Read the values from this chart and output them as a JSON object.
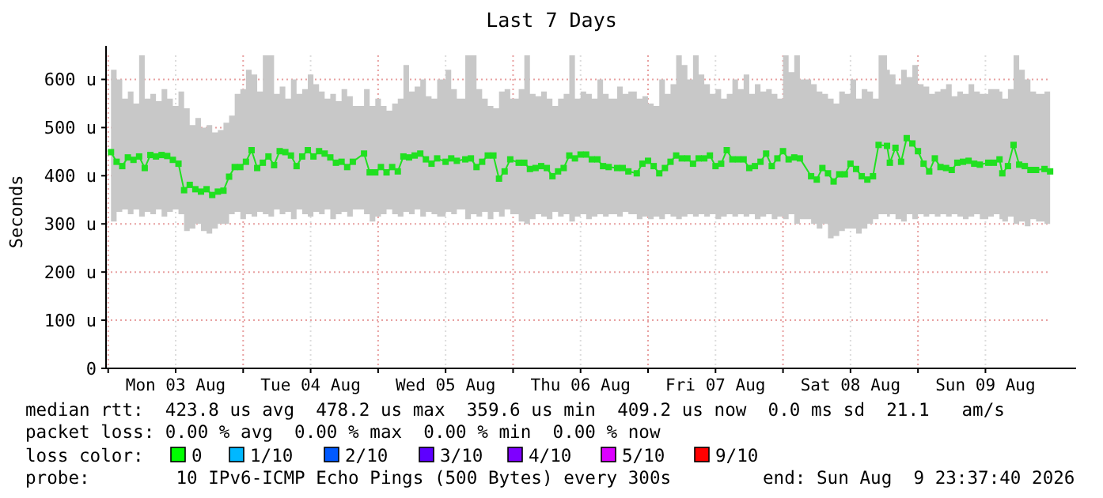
{
  "chart_data": {
    "type": "line",
    "title": "Last 7 Days",
    "ylabel": "Seconds",
    "xlim": [
      "2026-08-02T23:37",
      "2026-08-09T23:37"
    ],
    "xticks": [
      {
        "value": "2026-08-03T00:00",
        "label": null
      },
      {
        "value": "2026-08-03T12:00",
        "label": "Mon 03 Aug"
      },
      {
        "value": "2026-08-04T00:00",
        "label": null
      },
      {
        "value": "2026-08-04T12:00",
        "label": "Tue 04 Aug"
      },
      {
        "value": "2026-08-05T00:00",
        "label": null
      },
      {
        "value": "2026-08-05T12:00",
        "label": "Wed 05 Aug"
      },
      {
        "value": "2026-08-06T00:00",
        "label": null
      },
      {
        "value": "2026-08-06T12:00",
        "label": "Thu 06 Aug"
      },
      {
        "value": "2026-08-07T00:00",
        "label": null
      },
      {
        "value": "2026-08-07T12:00",
        "label": "Fri 07 Aug"
      },
      {
        "value": "2026-08-08T00:00",
        "label": null
      },
      {
        "value": "2026-08-08T12:00",
        "label": "Sat 08 Aug"
      },
      {
        "value": "2026-08-09T00:00",
        "label": null
      },
      {
        "value": "2026-08-09T12:00",
        "label": "Sun 09 Aug"
      }
    ],
    "ylim": [
      0,
      650
    ],
    "yticks": [
      0,
      {
        "value": 100,
        "label": "100 u"
      },
      {
        "value": 200,
        "label": "200 u"
      },
      {
        "value": 300,
        "label": "300 u"
      },
      {
        "value": 400,
        "label": "400 u"
      },
      {
        "value": 500,
        "label": "500 u"
      },
      {
        "value": 600,
        "label": "600 u"
      }
    ],
    "grid": true,
    "marker": "square",
    "line_style": "solid",
    "series": [
      {
        "color": "#20e020",
        "x": [
          "2026-08-03T00:30",
          "2026-08-03T01:30",
          "2026-08-03T02:30",
          "2026-08-03T03:30",
          "2026-08-03T04:30",
          "2026-08-03T05:30",
          "2026-08-03T06:30",
          "2026-08-03T07:30",
          "2026-08-03T08:30",
          "2026-08-03T09:30",
          "2026-08-03T10:30",
          "2026-08-03T11:30",
          "2026-08-03T12:30",
          "2026-08-03T13:30",
          "2026-08-03T14:30",
          "2026-08-03T15:30",
          "2026-08-03T16:30",
          "2026-08-03T17:30",
          "2026-08-03T18:30",
          "2026-08-03T19:30",
          "2026-08-03T20:30",
          "2026-08-03T21:30",
          "2026-08-03T22:30",
          "2026-08-03T23:30",
          "2026-08-04T00:30",
          "2026-08-04T01:30",
          "2026-08-04T02:30",
          "2026-08-04T03:30",
          "2026-08-04T04:30",
          "2026-08-04T05:30",
          "2026-08-04T06:30",
          "2026-08-04T07:30",
          "2026-08-04T08:30",
          "2026-08-04T09:30",
          "2026-08-04T10:30",
          "2026-08-04T11:30",
          "2026-08-04T12:30",
          "2026-08-04T13:30",
          "2026-08-04T14:30",
          "2026-08-04T15:30",
          "2026-08-04T16:30",
          "2026-08-04T17:30",
          "2026-08-04T18:30",
          "2026-08-04T19:30",
          "2026-08-04T21:30",
          "2026-08-04T22:30",
          "2026-08-04T23:30",
          "2026-08-05T00:30",
          "2026-08-05T01:30",
          "2026-08-05T02:30",
          "2026-08-05T03:30",
          "2026-08-05T04:30",
          "2026-08-05T05:30",
          "2026-08-05T06:30",
          "2026-08-05T07:30",
          "2026-08-05T08:30",
          "2026-08-05T09:30",
          "2026-08-05T10:30",
          "2026-08-05T12:00",
          "2026-08-05T13:00",
          "2026-08-05T14:00",
          "2026-08-05T15:30",
          "2026-08-05T16:30",
          "2026-08-05T17:30",
          "2026-08-05T18:30",
          "2026-08-05T19:30",
          "2026-08-05T20:30",
          "2026-08-05T21:30",
          "2026-08-05T22:30",
          "2026-08-05T23:30",
          "2026-08-06T01:00",
          "2026-08-06T02:00",
          "2026-08-06T03:00",
          "2026-08-06T04:00",
          "2026-08-06T05:00",
          "2026-08-06T06:00",
          "2026-08-06T07:00",
          "2026-08-06T08:00",
          "2026-08-06T09:00",
          "2026-08-06T10:00",
          "2026-08-06T11:00",
          "2026-08-06T12:00",
          "2026-08-06T13:00",
          "2026-08-06T14:00",
          "2026-08-06T15:00",
          "2026-08-06T16:00",
          "2026-08-06T17:00",
          "2026-08-06T18:30",
          "2026-08-06T19:30",
          "2026-08-06T20:30",
          "2026-08-06T22:00",
          "2026-08-06T23:00",
          "2026-08-07T00:00",
          "2026-08-07T01:00",
          "2026-08-07T02:00",
          "2026-08-07T03:00",
          "2026-08-07T04:00",
          "2026-08-07T05:00",
          "2026-08-07T06:00",
          "2026-08-07T07:00",
          "2026-08-07T08:00",
          "2026-08-07T09:00",
          "2026-08-07T10:00",
          "2026-08-07T11:00",
          "2026-08-07T12:00",
          "2026-08-07T13:00",
          "2026-08-07T14:00",
          "2026-08-07T15:00",
          "2026-08-07T16:00",
          "2026-08-07T17:00",
          "2026-08-07T18:00",
          "2026-08-07T19:00",
          "2026-08-07T20:00",
          "2026-08-07T21:00",
          "2026-08-07T22:00",
          "2026-08-07T23:00",
          "2026-08-08T00:00",
          "2026-08-08T01:00",
          "2026-08-08T02:00",
          "2026-08-08T03:00",
          "2026-08-08T05:00",
          "2026-08-08T06:00",
          "2026-08-08T07:00",
          "2026-08-08T08:00",
          "2026-08-08T09:00",
          "2026-08-08T10:00",
          "2026-08-08T11:00",
          "2026-08-08T12:00",
          "2026-08-08T13:00",
          "2026-08-08T14:00",
          "2026-08-08T15:00",
          "2026-08-08T16:00",
          "2026-08-08T17:00",
          "2026-08-08T18:30",
          "2026-08-08T19:00",
          "2026-08-08T20:00",
          "2026-08-08T21:00",
          "2026-08-08T22:00",
          "2026-08-08T23:00",
          "2026-08-09T00:00",
          "2026-08-09T01:00",
          "2026-08-09T02:00",
          "2026-08-09T03:00",
          "2026-08-09T04:00",
          "2026-08-09T05:00",
          "2026-08-09T06:00",
          "2026-08-09T07:00",
          "2026-08-09T08:00",
          "2026-08-09T09:00",
          "2026-08-09T10:00",
          "2026-08-09T11:00",
          "2026-08-09T12:30",
          "2026-08-09T13:30",
          "2026-08-09T14:30",
          "2026-08-09T15:00",
          "2026-08-09T16:00",
          "2026-08-09T17:00",
          "2026-08-09T18:00",
          "2026-08-09T19:00",
          "2026-08-09T20:00",
          "2026-08-09T21:00",
          "2026-08-09T22:30",
          "2026-08-09T23:30"
        ],
        "values": [
          449,
          429,
          420,
          438,
          433,
          440,
          416,
          443,
          440,
          443,
          441,
          433,
          425,
          370,
          381,
          372,
          367,
          372,
          360,
          367,
          369,
          398,
          418,
          418,
          429,
          453,
          416,
          427,
          440,
          422,
          451,
          449,
          442,
          420,
          440,
          453,
          440,
          451,
          446,
          438,
          427,
          429,
          418,
          429,
          446,
          407,
          407,
          418,
          407,
          418,
          409,
          440,
          438,
          442,
          446,
          434,
          425,
          436,
          429,
          436,
          431,
          434,
          436,
          418,
          429,
          442,
          442,
          394,
          409,
          434,
          427,
          427,
          414,
          416,
          420,
          416,
          399,
          409,
          416,
          442,
          436,
          444,
          444,
          434,
          434,
          420,
          418,
          416,
          416,
          409,
          405,
          425,
          431,
          420,
          405,
          416,
          429,
          442,
          436,
          436,
          425,
          436,
          436,
          442,
          420,
          425,
          453,
          434,
          434,
          434,
          416,
          420,
          429,
          446,
          420,
          436,
          451,
          434,
          438,
          436,
          399,
          392,
          416,
          405,
          388,
          403,
          403,
          425,
          414,
          399,
          392,
          399,
          464,
          462,
          427,
          458,
          429,
          478,
          467,
          451,
          425,
          409,
          436,
          418,
          416,
          412,
          427,
          429,
          431,
          425,
          423,
          427,
          427,
          434,
          405,
          420,
          464,
          423,
          420,
          412,
          412,
          414,
          409
        ],
        "lower": [
          305,
          325,
          330,
          320,
          330,
          315,
          325,
          320,
          330,
          315,
          325,
          330,
          320,
          285,
          290,
          300,
          285,
          280,
          290,
          300,
          300,
          320,
          325,
          310,
          320,
          315,
          325,
          320,
          315,
          330,
          320,
          325,
          310,
          330,
          320,
          315,
          325,
          320,
          330,
          310,
          320,
          325,
          315,
          330,
          320,
          305,
          315,
          320,
          330,
          320,
          315,
          325,
          320,
          330,
          315,
          325,
          320,
          315,
          325,
          320,
          330,
          310,
          320,
          315,
          325,
          310,
          325,
          315,
          330,
          320,
          305,
          300,
          310,
          320,
          315,
          310,
          325,
          315,
          320,
          305,
          315,
          320,
          310,
          315,
          320,
          315,
          320,
          315,
          325,
          320,
          310,
          315,
          310,
          315,
          310,
          320,
          315,
          310,
          315,
          320,
          315,
          320,
          315,
          320,
          310,
          315,
          320,
          315,
          320,
          315,
          320,
          310,
          315,
          320,
          310,
          315,
          310,
          320,
          300,
          310,
          300,
          290,
          300,
          270,
          275,
          285,
          290,
          290,
          280,
          290,
          300,
          310,
          320,
          315,
          320,
          310,
          305,
          320,
          310,
          320,
          315,
          320,
          315,
          320,
          315,
          320,
          315,
          310,
          315,
          320,
          310,
          315,
          320,
          310,
          305,
          315,
          300,
          305,
          295,
          310,
          305,
          300,
          320
        ],
        "upper": [
          620,
          600,
          560,
          575,
          550,
          650,
          560,
          570,
          555,
          580,
          560,
          545,
          575,
          540,
          505,
          520,
          500,
          505,
          490,
          495,
          510,
          525,
          570,
          580,
          620,
          610,
          575,
          650,
          650,
          570,
          585,
          560,
          600,
          570,
          580,
          610,
          590,
          575,
          560,
          570,
          555,
          580,
          565,
          545,
          580,
          545,
          560,
          545,
          535,
          550,
          560,
          630,
          575,
          585,
          600,
          565,
          560,
          600,
          620,
          580,
          560,
          650,
          650,
          580,
          560,
          545,
          540,
          575,
          580,
          560,
          580,
          650,
          570,
          565,
          575,
          560,
          545,
          560,
          570,
          650,
          560,
          575,
          570,
          560,
          600,
          570,
          560,
          585,
          570,
          575,
          560,
          565,
          550,
          545,
          600,
          570,
          590,
          650,
          630,
          600,
          650,
          610,
          590,
          570,
          580,
          560,
          570,
          600,
          580,
          610,
          570,
          590,
          575,
          580,
          570,
          560,
          650,
          615,
          650,
          600,
          590,
          575,
          570,
          560,
          550,
          575,
          570,
          600,
          560,
          580,
          575,
          560,
          650,
          620,
          610,
          590,
          620,
          605,
          630,
          590,
          585,
          570,
          575,
          580,
          590,
          565,
          575,
          570,
          590,
          575,
          570,
          580,
          580,
          575,
          560,
          580,
          650,
          620,
          600,
          575,
          570,
          575,
          565
        ]
      }
    ],
    "annotations": [
      "median rtt:  423.8 us avg  478.2 us max  359.6 us min  409.2 us now  0.0 ms sd  21.1   am/s",
      "packet loss: 0.00 % avg  0.00 % max  0.00 % min  0.00 % now",
      "loss color:",
      "0",
      "1/10",
      "2/10",
      "3/10",
      "4/10",
      "5/10",
      "9/10",
      "probe:        10 IPv6-ICMP Echo Pings (500 Bytes) every 300s",
      "end: Sun Aug  9 23:37:40 2026"
    ]
  }
}
